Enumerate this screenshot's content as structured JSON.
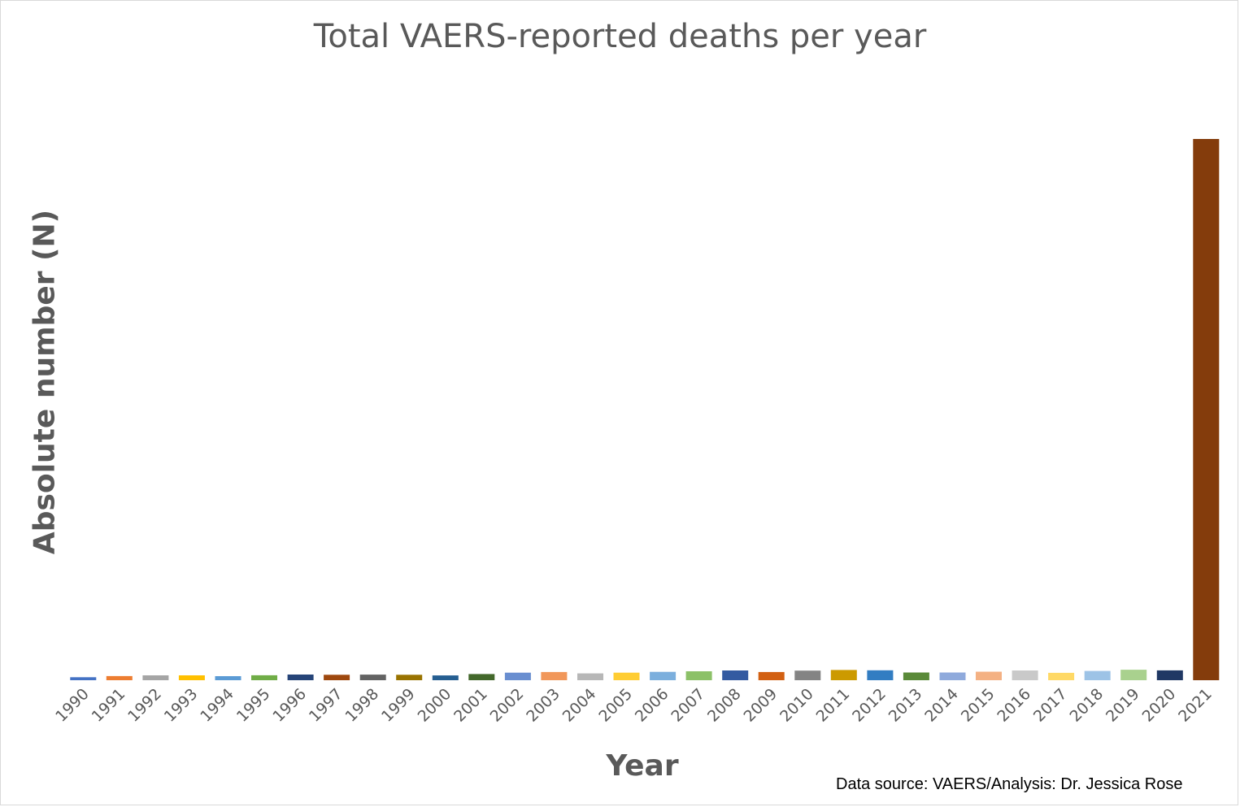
{
  "chart_data": {
    "type": "bar",
    "title": "Total VAERS-reported deaths per year",
    "xlabel": "Year",
    "ylabel": "Absolute number (N)",
    "note": "Data source: VAERS/Analysis: Dr. Jessica Rose",
    "categories": [
      "1990",
      "1991",
      "1992",
      "1993",
      "1994",
      "1995",
      "1996",
      "1997",
      "1998",
      "1999",
      "2000",
      "2001",
      "2002",
      "2003",
      "2004",
      "2005",
      "2006",
      "2007",
      "2008",
      "2009",
      "2010",
      "2011",
      "2012",
      "2013",
      "2014",
      "2015",
      "2016",
      "2017",
      "2018",
      "2019",
      "2020",
      "2021"
    ],
    "values": [
      98,
      135,
      158,
      158,
      132,
      160,
      185,
      175,
      180,
      175,
      155,
      200,
      245,
      265,
      220,
      245,
      270,
      290,
      315,
      265,
      310,
      330,
      320,
      250,
      250,
      275,
      315,
      240,
      300,
      340,
      318,
      17500
    ],
    "colors": [
      "#4472c4",
      "#ed7d31",
      "#a5a5a5",
      "#ffc000",
      "#5b9bd5",
      "#70ad47",
      "#264478",
      "#9e480e",
      "#636363",
      "#997300",
      "#255e91",
      "#43682b",
      "#698ed0",
      "#f1975a",
      "#b7b7b7",
      "#ffcd33",
      "#7cafdd",
      "#8cc168",
      "#335aa1",
      "#d26012",
      "#848484",
      "#cc9a00",
      "#327dc2",
      "#5a8a39",
      "#8faadc",
      "#f4b183",
      "#c9c9c9",
      "#ffd966",
      "#9dc3e6",
      "#a9d18e",
      "#203864",
      "#843c0c"
    ],
    "ylim": [
      0,
      17500
    ],
    "grid": false,
    "legend": "none"
  }
}
